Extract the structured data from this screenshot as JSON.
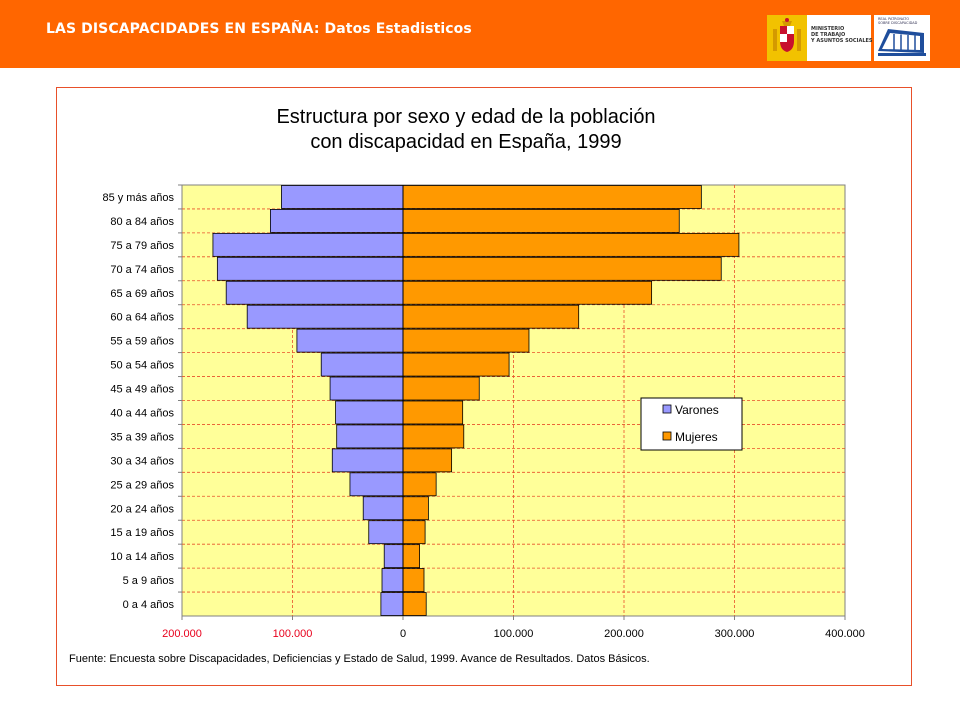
{
  "header": {
    "title": "LAS DISCAPACIDADES EN ESPAÑA: Datos Estadisticos",
    "accent_color": "#ff6600",
    "logos": [
      {
        "name": "ministry-logo",
        "lines": [
          "MINISTERIO",
          "DE TRABAJO",
          "Y ASUNTOS SOCIALES"
        ]
      },
      {
        "name": "institute-logo",
        "lines": [
          "REAL PATRONATO",
          "SOBRE DISCAPACIDAD"
        ]
      }
    ]
  },
  "chart_data": {
    "type": "bar",
    "orientation": "horizontal",
    "title_lines": [
      "Estructura por sexo y edad de la población",
      "con discapacidad en España, 1999"
    ],
    "categories": [
      "85 y más años",
      "80 a 84 años",
      "75 a 79 años",
      "70 a 74 años",
      "65 a 69 años",
      "60 a 64 años",
      "55 a 59 años",
      "50 a 54 años",
      "45 a 49 años",
      "40 a 44 años",
      "35 a 39 años",
      "30 a 34 años",
      "25 a 29 años",
      "20 a 24 años",
      "15 a 19 años",
      "10 a 14 años",
      "5 a 9 años",
      "0 a 4 años"
    ],
    "series": [
      {
        "name": "Varones",
        "color": "#9999ff",
        "side": "left",
        "values": [
          110000,
          120000,
          172000,
          168000,
          160000,
          141000,
          96000,
          74000,
          66000,
          61000,
          60000,
          64000,
          48000,
          36000,
          31000,
          17000,
          19000,
          20000
        ]
      },
      {
        "name": "Mujeres",
        "color": "#ff9900",
        "side": "right",
        "values": [
          270000,
          250000,
          304000,
          288000,
          225000,
          159000,
          114000,
          96000,
          69000,
          54000,
          55000,
          44000,
          30000,
          23000,
          20000,
          15000,
          19000,
          21000
        ]
      }
    ],
    "x_ticks": [
      "200.000",
      "100.000",
      "0",
      "100.000",
      "200.000",
      "300.000",
      "400.000"
    ],
    "x_tick_values": [
      -200000,
      -100000,
      0,
      100000,
      200000,
      300000,
      400000
    ],
    "xlim": [
      -200000,
      400000
    ],
    "plot_background": "#ffff99",
    "grid": true,
    "legend_position": "right"
  },
  "footer": {
    "source": "Fuente: Encuesta sobre Discapacidades, Deficiencias y Estado de Salud, 1999. Avance de Resultados. Datos Básicos."
  }
}
